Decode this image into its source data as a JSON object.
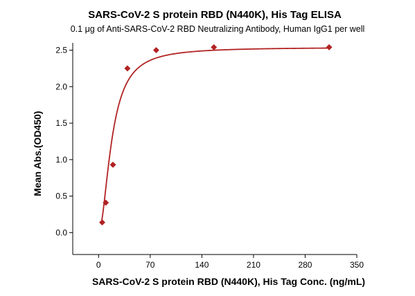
{
  "chart_data": {
    "type": "scatter",
    "title": "SARS-CoV-2 S protein RBD (N440K), His Tag ELISA",
    "subtitle": "0.1 μg of Anti-SARS-CoV-2 RBD Neutralizing Antibody, Human IgG1 per well",
    "xlabel": "SARS-CoV-2 S protein RBD (N440K), His Tag Conc. (ng/mL)",
    "ylabel": "Mean Abs.(OD450)",
    "xlim": [
      -35,
      350
    ],
    "ylim": [
      -0.3,
      2.6
    ],
    "xticks": [
      0,
      70,
      140,
      210,
      280,
      350
    ],
    "yticks": [
      0.0,
      0.5,
      1.0,
      1.5,
      2.0,
      2.5
    ],
    "ytick_labels": [
      "0.0",
      "0.5",
      "1.0",
      "1.5",
      "2.0",
      "2.5"
    ],
    "grid": false,
    "series": [
      {
        "color": "#b22222",
        "marker": "diamond",
        "x": [
          4.9,
          9.8,
          19.5,
          39.1,
          78.1,
          156.3,
          312.5
        ],
        "y": [
          0.14,
          0.41,
          0.93,
          2.25,
          2.5,
          2.54,
          2.54
        ]
      }
    ],
    "fit_curve": {
      "type": "4PL",
      "color": "#b22222",
      "bottom": 0.0,
      "top": 2.54,
      "ec50": 18.0,
      "hill": 1.9,
      "x_range": [
        4,
        315
      ]
    }
  }
}
